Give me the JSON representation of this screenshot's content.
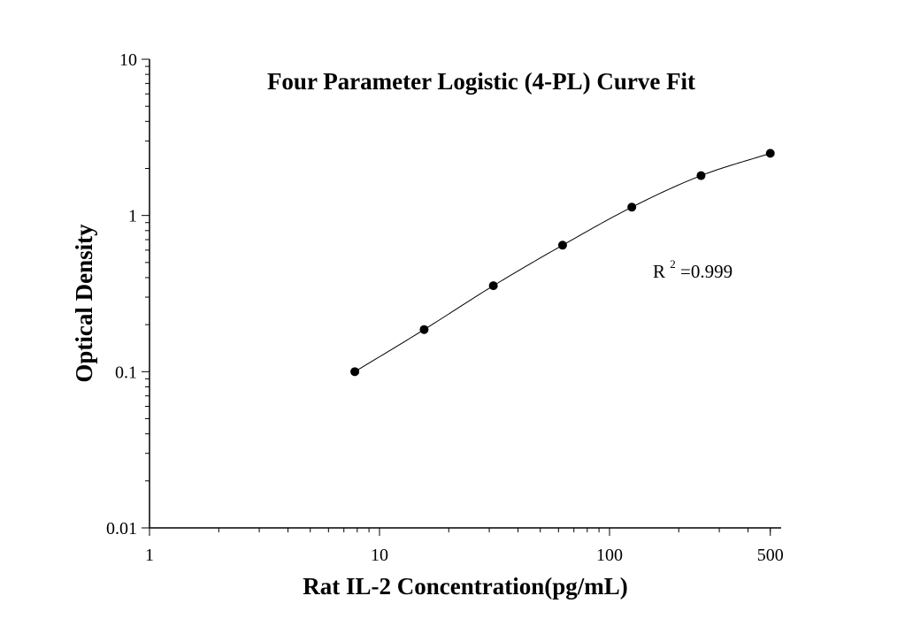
{
  "chart_data": {
    "type": "scatter",
    "title": "Four Parameter Logistic (4-PL) Curve Fit",
    "xlabel": "Rat IL-2 Concentration(pg/mL)",
    "ylabel": "Optical Density",
    "x_scale": "log",
    "y_scale": "log",
    "xlim": [
      1,
      500
    ],
    "ylim": [
      0.01,
      10
    ],
    "x_ticks": [
      {
        "value": 1,
        "label": "1"
      },
      {
        "value": 10,
        "label": "10"
      },
      {
        "value": 100,
        "label": "100"
      },
      {
        "value": 500,
        "label": "500"
      }
    ],
    "y_ticks": [
      {
        "value": 0.01,
        "label": "0.01"
      },
      {
        "value": 0.1,
        "label": "0.1"
      },
      {
        "value": 1,
        "label": "1"
      },
      {
        "value": 10,
        "label": "10"
      }
    ],
    "grid": false,
    "legend": "none",
    "series": [
      {
        "points": [
          {
            "x": 7.81,
            "y": 0.1
          },
          {
            "x": 15.63,
            "y": 0.186
          },
          {
            "x": 31.25,
            "y": 0.355
          },
          {
            "x": 62.5,
            "y": 0.645
          },
          {
            "x": 125,
            "y": 1.13
          },
          {
            "x": 250,
            "y": 1.8
          },
          {
            "x": 500,
            "y": 2.5
          }
        ],
        "color": "#000000",
        "fit": "4-PL"
      }
    ],
    "annotation": {
      "base": "R",
      "superscript": "2",
      "rest": "=0.999"
    }
  }
}
